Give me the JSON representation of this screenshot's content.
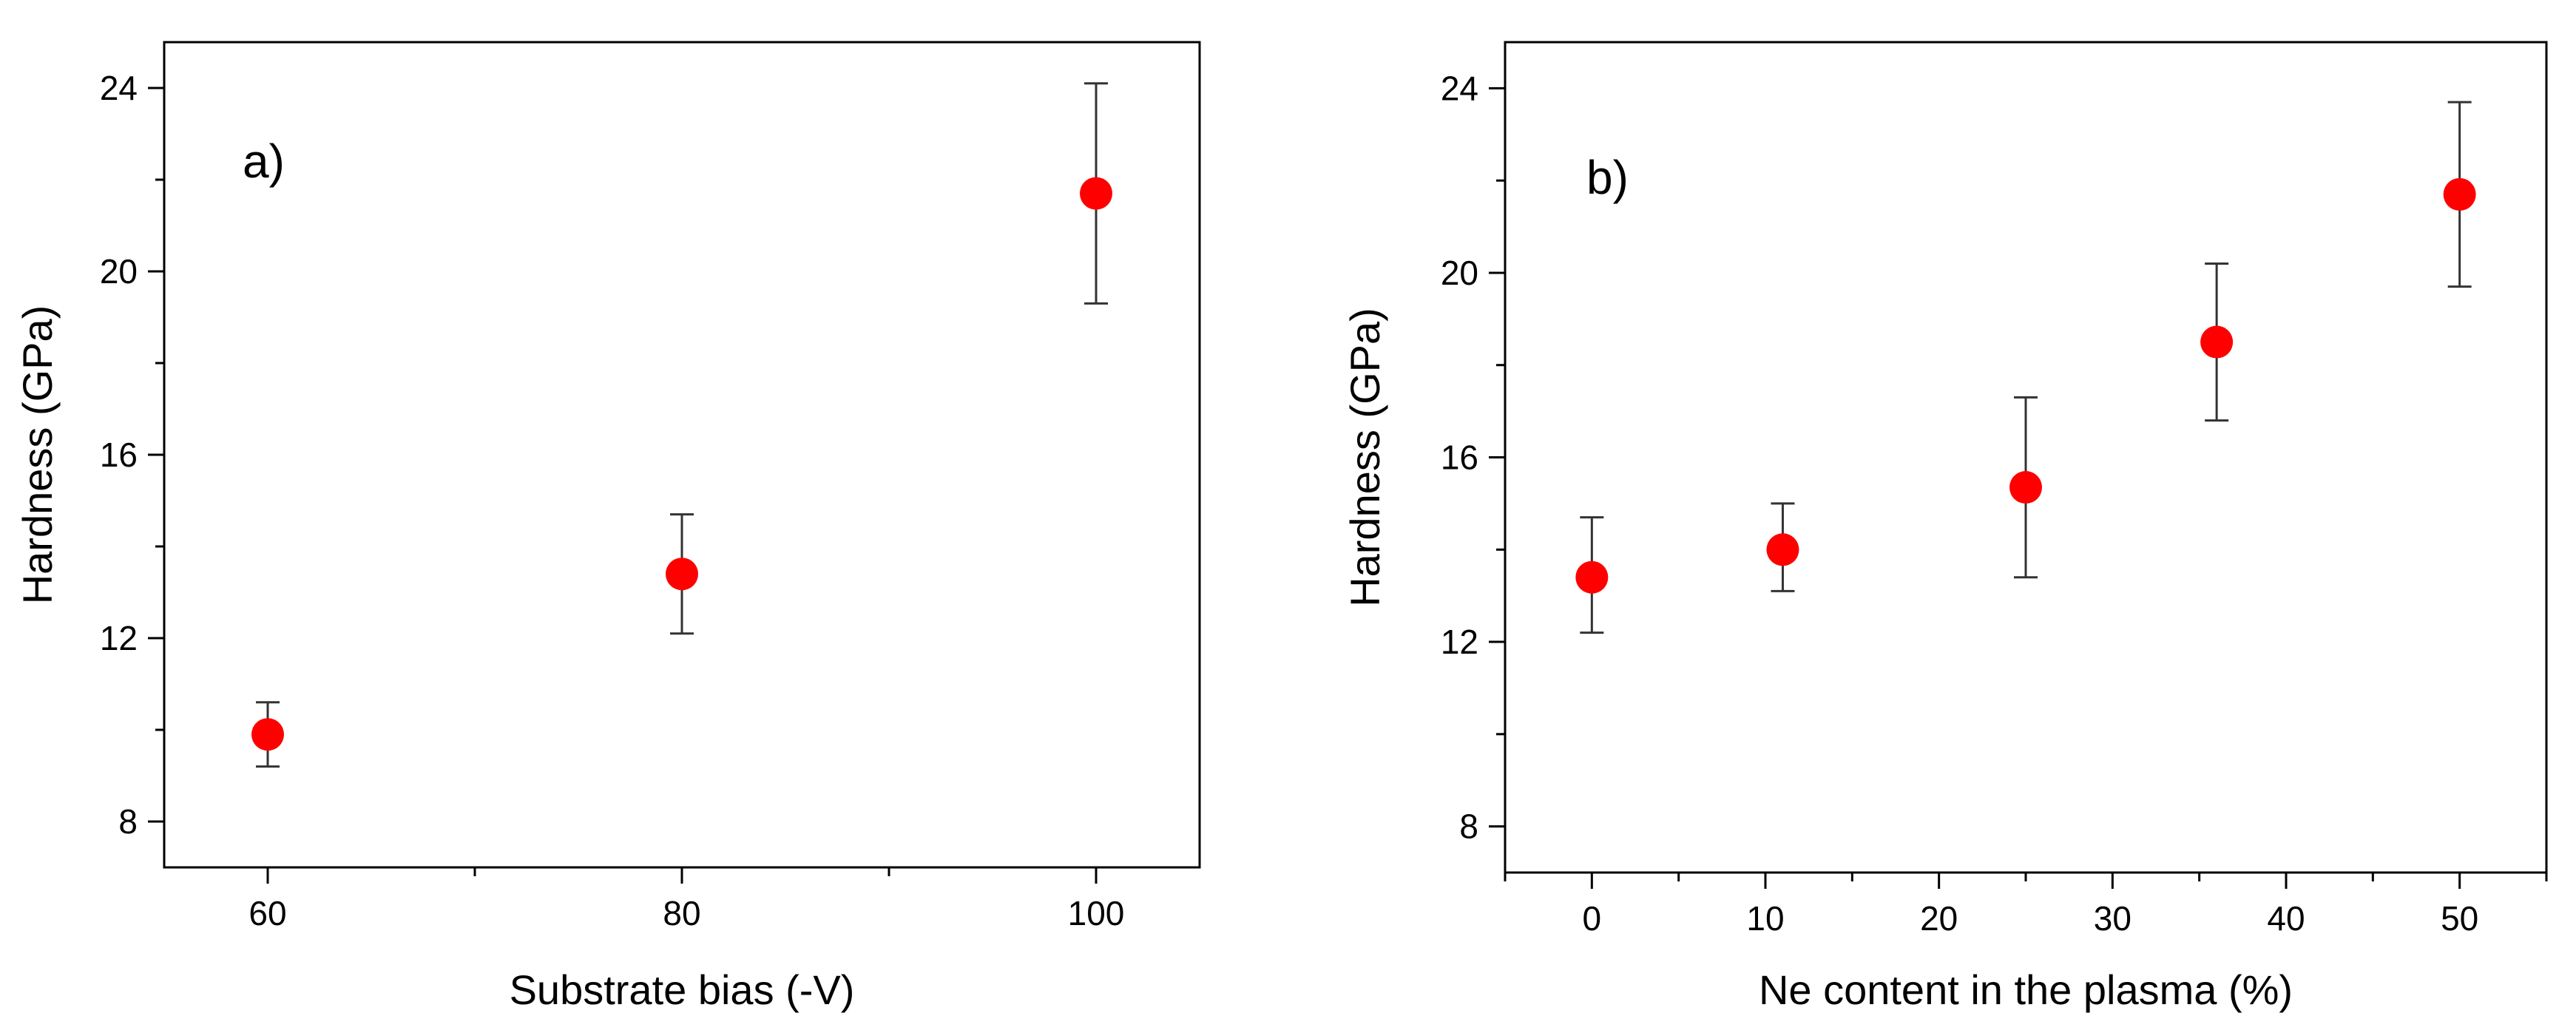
{
  "chart_data": [
    {
      "type": "scatter",
      "panel_label": "a)",
      "xlabel": "Substrate bias (-V)",
      "ylabel": "Hardness (GPa)",
      "xlim": [
        55,
        105
      ],
      "ylim": [
        7,
        25
      ],
      "xticks": [
        60,
        80,
        100
      ],
      "xticks_minor": [
        70,
        90
      ],
      "yticks": [
        8,
        12,
        16,
        20,
        24
      ],
      "yticks_minor": [
        10,
        14,
        18,
        22
      ],
      "marker_color": "#ff0000",
      "points": [
        {
          "x": 60,
          "y": 9.9,
          "err_low": 9.2,
          "err_high": 10.6
        },
        {
          "x": 80,
          "y": 13.4,
          "err_low": 12.1,
          "err_high": 14.7
        },
        {
          "x": 100,
          "y": 21.7,
          "err_low": 19.3,
          "err_high": 24.1
        }
      ]
    },
    {
      "type": "scatter",
      "panel_label": "b)",
      "xlabel": "Ne content in the plasma (%)",
      "ylabel": "Hardness (GPa)",
      "xlim": [
        -5,
        55
      ],
      "ylim": [
        7,
        25
      ],
      "xticks": [
        0,
        10,
        20,
        30,
        40,
        50
      ],
      "xticks_minor": [
        -5,
        5,
        15,
        25,
        35,
        45,
        55
      ],
      "yticks": [
        8,
        12,
        16,
        20,
        24
      ],
      "yticks_minor": [
        10,
        14,
        18,
        22
      ],
      "marker_color": "#ff0000",
      "points": [
        {
          "x": 0,
          "y": 13.4,
          "err_low": 12.2,
          "err_high": 14.7
        },
        {
          "x": 11,
          "y": 14.0,
          "err_low": 13.1,
          "err_high": 15.0
        },
        {
          "x": 25,
          "y": 15.35,
          "err_low": 13.4,
          "err_high": 17.3
        },
        {
          "x": 36,
          "y": 18.5,
          "err_low": 16.8,
          "err_high": 20.2
        },
        {
          "x": 50,
          "y": 21.7,
          "err_low": 19.7,
          "err_high": 23.7
        }
      ]
    }
  ]
}
